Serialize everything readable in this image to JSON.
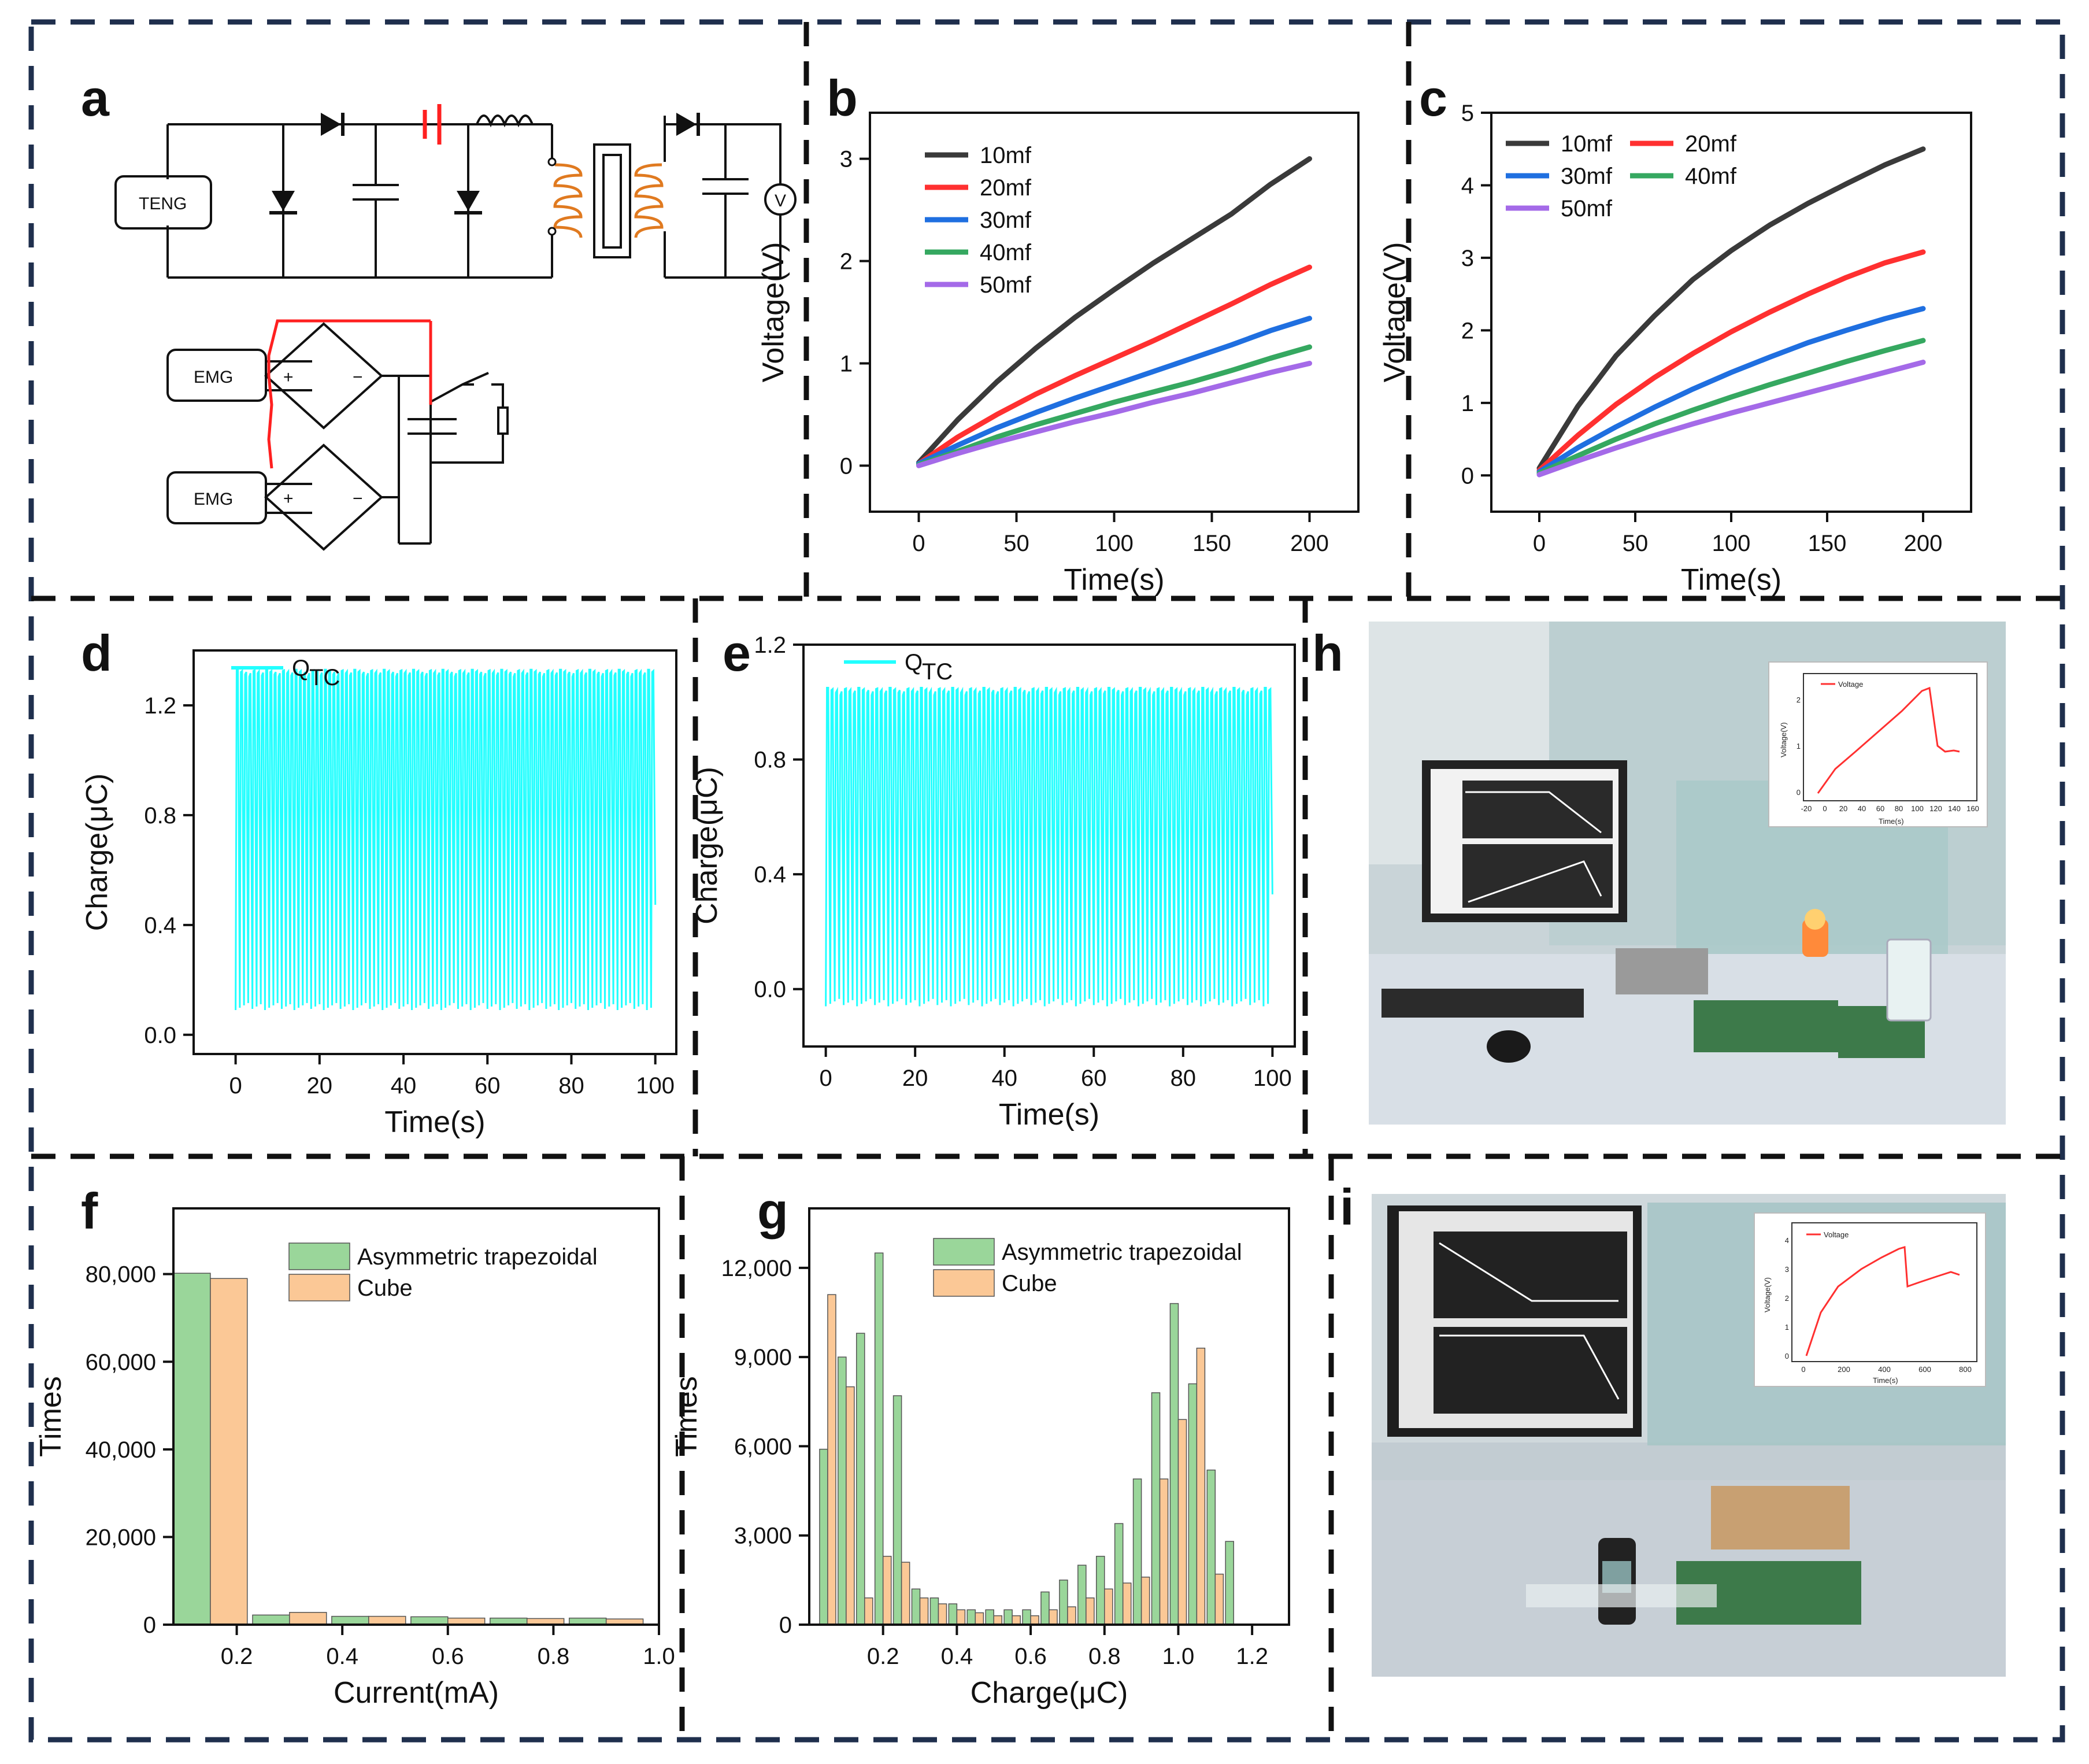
{
  "panels": {
    "a": {
      "label": "a",
      "teng_label": "TENG",
      "emg_label_1": "EMG",
      "emg_label_2": "EMG",
      "voltmeter_label": "V",
      "plus_1": "+",
      "plus_2": "+",
      "minus_1": "−",
      "minus_2": "−"
    },
    "h": {
      "label": "h",
      "inset": {
        "legend": "Voltage",
        "ylabel": "Voltage(V)",
        "xlabel": "Time(s)",
        "xticks": [
          "-20",
          "0",
          "20",
          "40",
          "60",
          "80",
          "100",
          "120",
          "140",
          "160"
        ],
        "yticks": [
          "0",
          "1",
          "2"
        ]
      }
    },
    "i": {
      "label": "i",
      "inset": {
        "legend": "Voltage",
        "ylabel": "Voltage(V)",
        "xlabel": "Time(s)",
        "xticks": [
          "0",
          "200",
          "400",
          "600",
          "800"
        ],
        "yticks": [
          "0",
          "1",
          "2",
          "3",
          "4"
        ]
      }
    }
  },
  "colors": {
    "border": "#1f2f4d",
    "cyan": "#22ffff",
    "green_fill": "#9ad69a",
    "orange_fill": "#fbc896",
    "black": "#3a3a3a",
    "red": "#ff3030",
    "blue": "#1f6fe0",
    "green": "#35a860",
    "purple": "#a46ae8"
  },
  "chart_data": [
    {
      "id": "b",
      "label": "b",
      "type": "line",
      "xlabel": "Time(s)",
      "ylabel": "Voltage(V)",
      "xlim": [
        -25,
        225
      ],
      "ylim": [
        -0.45,
        3.45
      ],
      "xticks": [
        0,
        50,
        100,
        150,
        200
      ],
      "yticks": [
        0,
        1,
        2,
        3
      ],
      "series": [
        {
          "name": "10mf",
          "color": "#3a3a3a",
          "x": [
            0,
            20,
            40,
            60,
            80,
            100,
            120,
            140,
            160,
            180,
            200
          ],
          "y": [
            0.03,
            0.45,
            0.82,
            1.15,
            1.45,
            1.72,
            1.98,
            2.22,
            2.46,
            2.75,
            3.0
          ]
        },
        {
          "name": "20mf",
          "color": "#ff3030",
          "x": [
            0,
            20,
            40,
            60,
            80,
            100,
            120,
            140,
            160,
            180,
            200
          ],
          "y": [
            0.02,
            0.28,
            0.5,
            0.7,
            0.88,
            1.05,
            1.22,
            1.4,
            1.58,
            1.77,
            1.94
          ]
        },
        {
          "name": "30mf",
          "color": "#1f6fe0",
          "x": [
            0,
            20,
            40,
            60,
            80,
            100,
            120,
            140,
            160,
            180,
            200
          ],
          "y": [
            0.02,
            0.2,
            0.37,
            0.52,
            0.66,
            0.79,
            0.92,
            1.05,
            1.18,
            1.32,
            1.44
          ]
        },
        {
          "name": "40mf",
          "color": "#35a860",
          "x": [
            0,
            20,
            40,
            60,
            80,
            100,
            120,
            140,
            160,
            180,
            200
          ],
          "y": [
            0.01,
            0.14,
            0.28,
            0.4,
            0.51,
            0.62,
            0.72,
            0.82,
            0.93,
            1.05,
            1.16
          ]
        },
        {
          "name": "50mf",
          "color": "#a46ae8",
          "x": [
            0,
            20,
            40,
            60,
            80,
            100,
            120,
            140,
            160,
            180,
            200
          ],
          "y": [
            0.0,
            0.12,
            0.23,
            0.33,
            0.43,
            0.52,
            0.62,
            0.71,
            0.81,
            0.91,
            1.0
          ]
        }
      ]
    },
    {
      "id": "c",
      "label": "c",
      "type": "line",
      "xlabel": "Time(s)",
      "ylabel": "Voltage(V)",
      "xlim": [
        -25,
        225
      ],
      "ylim": [
        -0.5,
        5
      ],
      "xticks": [
        0,
        50,
        100,
        150,
        200
      ],
      "yticks": [
        0,
        1,
        2,
        3,
        4,
        5
      ],
      "series": [
        {
          "name": "10mf",
          "color": "#3a3a3a",
          "x": [
            0,
            20,
            40,
            60,
            80,
            100,
            120,
            140,
            160,
            180,
            200
          ],
          "y": [
            0.1,
            0.95,
            1.65,
            2.2,
            2.7,
            3.1,
            3.45,
            3.75,
            4.02,
            4.28,
            4.5
          ]
        },
        {
          "name": "20mf",
          "color": "#ff3030",
          "x": [
            0,
            20,
            40,
            60,
            80,
            100,
            120,
            140,
            160,
            180,
            200
          ],
          "y": [
            0.07,
            0.55,
            0.98,
            1.35,
            1.68,
            1.98,
            2.25,
            2.5,
            2.73,
            2.93,
            3.08
          ]
        },
        {
          "name": "30mf",
          "color": "#1f6fe0",
          "x": [
            0,
            20,
            40,
            60,
            80,
            100,
            120,
            140,
            160,
            180,
            200
          ],
          "y": [
            0.05,
            0.38,
            0.67,
            0.94,
            1.19,
            1.42,
            1.63,
            1.83,
            2.0,
            2.16,
            2.3
          ]
        },
        {
          "name": "40mf",
          "color": "#35a860",
          "x": [
            0,
            20,
            40,
            60,
            80,
            100,
            120,
            140,
            160,
            180,
            200
          ],
          "y": [
            0.03,
            0.27,
            0.5,
            0.71,
            0.9,
            1.08,
            1.25,
            1.41,
            1.57,
            1.72,
            1.86
          ]
        },
        {
          "name": "50mf",
          "color": "#a46ae8",
          "x": [
            0,
            20,
            40,
            60,
            80,
            100,
            120,
            140,
            160,
            180,
            200
          ],
          "y": [
            0.01,
            0.2,
            0.38,
            0.55,
            0.71,
            0.86,
            1.0,
            1.14,
            1.28,
            1.42,
            1.56
          ]
        }
      ]
    },
    {
      "id": "d",
      "label": "d",
      "type": "line",
      "xlabel": "Time(s)",
      "ylabel": "Charge(μC)",
      "xlim": [
        -10,
        105
      ],
      "ylim": [
        -0.07,
        1.4
      ],
      "xticks": [
        0,
        20,
        40,
        60,
        80,
        100
      ],
      "yticks": [
        0.0,
        0.4,
        0.8,
        1.2
      ],
      "ytick_labels": [
        "0.0",
        "0.4",
        "0.8",
        "1.2"
      ],
      "series": [
        {
          "name": "Q",
          "subscript": "TC",
          "color": "#22ffff",
          "cycles": 100,
          "x_range": [
            0,
            100
          ],
          "y_min": 0.09,
          "y_max": 1.33
        }
      ]
    },
    {
      "id": "e",
      "label": "e",
      "type": "line",
      "xlabel": "Time(s)",
      "ylabel": "Charge(μC)",
      "xlim": [
        -5,
        105
      ],
      "ylim": [
        -0.2,
        1.2
      ],
      "xticks": [
        0,
        20,
        40,
        60,
        80,
        100
      ],
      "yticks": [
        0.0,
        0.4,
        0.8,
        1.2
      ],
      "ytick_labels": [
        "0.0",
        "0.4",
        "0.8",
        "1.2"
      ],
      "series": [
        {
          "name": "Q",
          "subscript": "TC",
          "color": "#22ffff",
          "cycles": 100,
          "x_range": [
            0,
            100
          ],
          "y_min": -0.06,
          "y_max": 1.05
        }
      ]
    },
    {
      "id": "f",
      "label": "f",
      "type": "bar",
      "xlabel": "Current(mA)",
      "ylabel": "Times",
      "xlim": [
        0.08,
        1.0
      ],
      "ylim": [
        0,
        95000
      ],
      "xticks": [
        0.2,
        0.4,
        0.6,
        0.8,
        1.0
      ],
      "xtick_labels": [
        "0.2",
        "0.4",
        "0.6",
        "0.8",
        "1.0"
      ],
      "yticks": [
        0,
        20000,
        40000,
        60000,
        80000
      ],
      "ytick_labels": [
        "0",
        "20,000",
        "40,000",
        "60,000",
        "80,000"
      ],
      "bin_width": 0.15,
      "bar_width": 0.07,
      "categories": [
        0.15,
        0.3,
        0.45,
        0.6,
        0.75,
        0.9
      ],
      "series": [
        {
          "name": "Asymmetric trapezoidal",
          "color": "#9ad69a",
          "values": [
            80200,
            2200,
            1900,
            1800,
            1500,
            1500
          ]
        },
        {
          "name": "Cube",
          "color": "#fbc896",
          "values": [
            79000,
            2800,
            1900,
            1500,
            1400,
            1300
          ]
        }
      ]
    },
    {
      "id": "g",
      "label": "g",
      "type": "bar",
      "xlabel": "Charge(μC)",
      "ylabel": "Times",
      "xlim": [
        0.0,
        1.3
      ],
      "ylim": [
        0,
        14000
      ],
      "xticks": [
        0.2,
        0.4,
        0.6,
        0.8,
        1.0,
        1.2
      ],
      "xtick_labels": [
        "0.2",
        "0.4",
        "0.6",
        "0.8",
        "1.0",
        "1.2"
      ],
      "yticks": [
        0,
        3000,
        6000,
        9000,
        12000
      ],
      "ytick_labels": [
        "0",
        "3,000",
        "6,000",
        "9,000",
        "12,000"
      ],
      "bin_width": 0.05,
      "bar_width": 0.022,
      "categories": [
        0.05,
        0.1,
        0.15,
        0.2,
        0.25,
        0.3,
        0.35,
        0.4,
        0.45,
        0.5,
        0.55,
        0.6,
        0.65,
        0.7,
        0.75,
        0.8,
        0.85,
        0.9,
        0.95,
        1.0,
        1.05,
        1.1,
        1.15,
        1.2
      ],
      "series": [
        {
          "name": "Asymmetric trapezoidal",
          "color": "#9ad69a",
          "values": [
            5900,
            9000,
            9800,
            12500,
            7700,
            1200,
            900,
            700,
            500,
            500,
            500,
            500,
            1100,
            1500,
            2000,
            2300,
            3400,
            4900,
            7800,
            10800,
            8100,
            5200,
            2800,
            0
          ]
        },
        {
          "name": "Cube",
          "color": "#fbc896",
          "values": [
            11100,
            8000,
            900,
            2300,
            2100,
            900,
            700,
            500,
            400,
            300,
            300,
            300,
            500,
            600,
            900,
            1200,
            1400,
            1600,
            4900,
            6900,
            9300,
            1700,
            0,
            0
          ]
        }
      ]
    }
  ]
}
